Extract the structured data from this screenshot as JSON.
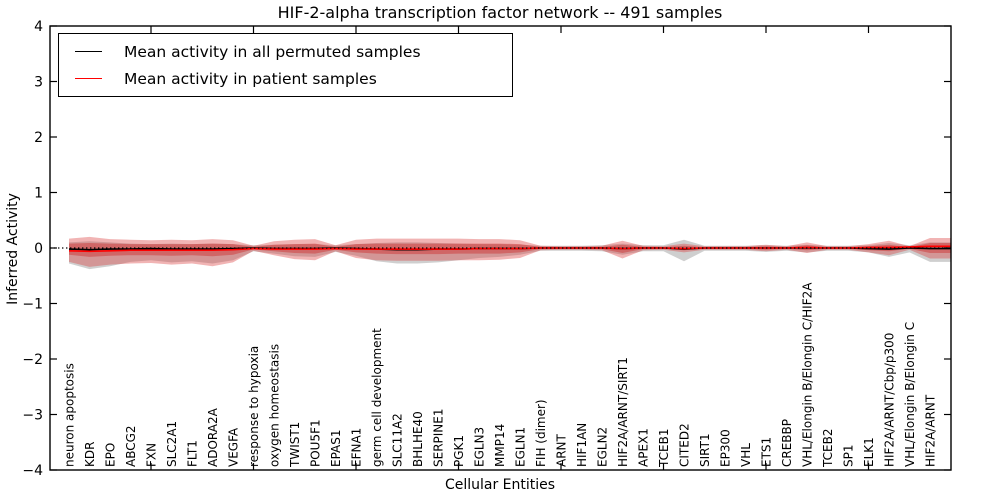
{
  "title": "HIF-2-alpha transcription factor network -- 491 samples",
  "xlabel": "Cellular Entities",
  "ylabel": "Inferred Activity",
  "legend": {
    "position": "upper left",
    "items": [
      {
        "label": "Mean activity in all permuted samples",
        "color": "#000000"
      },
      {
        "label": "Mean activity in patient samples",
        "color": "#ff0000"
      }
    ]
  },
  "axes": {
    "yticks": [
      4,
      3,
      2,
      1,
      0,
      -1,
      -2,
      -3,
      -4
    ],
    "ylim": [
      -4,
      4
    ],
    "xtick_label_rotation": 90,
    "xticks_major_every": 5,
    "spine_color": "#000000",
    "background": "#ffffff"
  },
  "chart_data": {
    "type": "area",
    "title": "HIF-2-alpha transcription factor network -- 491 samples",
    "xlabel": "Cellular Entities",
    "ylabel": "Inferred Activity",
    "ylim": [
      -4,
      4
    ],
    "grid": false,
    "legend_position": "upper left",
    "sample_count": 491,
    "categories": [
      "neuron apoptosis",
      "KDR",
      "EPO",
      "ABCG2",
      "FXN",
      "SLC2A1",
      "FLT1",
      "ADORA2A",
      "VEGFA",
      "response to hypoxia",
      "oxygen homeostasis",
      "TWIST1",
      "POU5F1",
      "EPAS1",
      "EFNA1",
      "germ cell development",
      "SLC11A2",
      "BHLHE40",
      "SERPINE1",
      "PGK1",
      "EGLN3",
      "MMP14",
      "EGLN1",
      "FIH (dimer)",
      "ARNT",
      "HIF1AN",
      "EGLN2",
      "HIF2A/ARNT/SIRT1",
      "APEX1",
      "TCEB1",
      "CITED2",
      "SIRT1",
      "EP300",
      "VHL",
      "ETS1",
      "CREBBP",
      "VHL/Elongin B/Elongin C/HIF2A",
      "TCEB2",
      "SP1",
      "ELK1",
      "HIF2A/ARNT/Cbp/p300",
      "VHL/Elongin B/Elongin C",
      "HIF2A/ARNT"
    ],
    "series": [
      {
        "name": "Permuted samples confidence band",
        "kind": "band",
        "fill": "rgba(130,130,130,0.38)",
        "upper": [
          0.1,
          0.12,
          0.1,
          0.08,
          0.07,
          0.08,
          0.07,
          0.08,
          0.07,
          0.05,
          0.06,
          0.07,
          0.07,
          0.05,
          0.07,
          0.09,
          0.1,
          0.1,
          0.09,
          0.08,
          0.07,
          0.07,
          0.06,
          0.04,
          0.04,
          0.04,
          0.05,
          0.08,
          0.05,
          0.05,
          0.15,
          0.04,
          0.04,
          0.04,
          0.05,
          0.04,
          0.06,
          0.04,
          0.04,
          0.05,
          0.09,
          0.05,
          0.1
        ],
        "lower": [
          -0.28,
          -0.38,
          -0.33,
          -0.25,
          -0.22,
          -0.26,
          -0.24,
          -0.28,
          -0.22,
          -0.06,
          -0.1,
          -0.15,
          -0.16,
          -0.07,
          -0.14,
          -0.24,
          -0.28,
          -0.28,
          -0.26,
          -0.22,
          -0.18,
          -0.16,
          -0.12,
          -0.05,
          -0.05,
          -0.05,
          -0.06,
          -0.12,
          -0.06,
          -0.06,
          -0.24,
          -0.05,
          -0.05,
          -0.05,
          -0.07,
          -0.05,
          -0.08,
          -0.05,
          -0.05,
          -0.08,
          -0.16,
          -0.08,
          -0.25
        ]
      },
      {
        "name": "Patient samples confidence band (outer)",
        "kind": "band",
        "fill": "rgba(219,58,58,0.38)",
        "upper": [
          0.17,
          0.2,
          0.16,
          0.15,
          0.14,
          0.15,
          0.14,
          0.16,
          0.14,
          0.04,
          0.12,
          0.15,
          0.16,
          0.05,
          0.15,
          0.17,
          0.17,
          0.17,
          0.17,
          0.17,
          0.16,
          0.16,
          0.14,
          0.04,
          0.03,
          0.03,
          0.04,
          0.13,
          0.04,
          0.03,
          0.08,
          0.03,
          0.03,
          0.03,
          0.06,
          0.03,
          0.1,
          0.03,
          0.03,
          0.07,
          0.13,
          0.03,
          0.18
        ],
        "lower": [
          -0.25,
          -0.34,
          -0.3,
          -0.28,
          -0.27,
          -0.3,
          -0.28,
          -0.33,
          -0.26,
          -0.05,
          -0.13,
          -0.2,
          -0.22,
          -0.06,
          -0.18,
          -0.22,
          -0.23,
          -0.23,
          -0.23,
          -0.22,
          -0.22,
          -0.21,
          -0.18,
          -0.04,
          -0.03,
          -0.03,
          -0.04,
          -0.19,
          -0.04,
          -0.03,
          -0.08,
          -0.03,
          -0.03,
          -0.03,
          -0.06,
          -0.03,
          -0.09,
          -0.03,
          -0.03,
          -0.08,
          -0.13,
          -0.03,
          -0.19
        ]
      },
      {
        "name": "Patient samples confidence band (inner)",
        "kind": "band",
        "fill": "rgba(205,35,35,0.42)",
        "upper": [
          0.08,
          0.09,
          0.08,
          0.07,
          0.07,
          0.07,
          0.07,
          0.08,
          0.07,
          0.02,
          0.06,
          0.07,
          0.08,
          0.02,
          0.07,
          0.08,
          0.08,
          0.08,
          0.08,
          0.08,
          0.08,
          0.08,
          0.07,
          0.02,
          0.015,
          0.015,
          0.02,
          0.06,
          0.02,
          0.015,
          0.04,
          0.015,
          0.015,
          0.015,
          0.03,
          0.015,
          0.05,
          0.015,
          0.015,
          0.03,
          0.06,
          0.015,
          0.09
        ],
        "lower": [
          -0.12,
          -0.16,
          -0.14,
          -0.13,
          -0.13,
          -0.14,
          -0.13,
          -0.15,
          -0.12,
          -0.025,
          -0.06,
          -0.09,
          -0.1,
          -0.03,
          -0.08,
          -0.1,
          -0.11,
          -0.11,
          -0.11,
          -0.1,
          -0.1,
          -0.1,
          -0.08,
          -0.02,
          -0.015,
          -0.015,
          -0.02,
          -0.09,
          -0.02,
          -0.015,
          -0.04,
          -0.015,
          -0.015,
          -0.015,
          -0.03,
          -0.015,
          -0.04,
          -0.015,
          -0.015,
          -0.04,
          -0.06,
          -0.015,
          -0.09
        ]
      },
      {
        "name": "Mean activity in all permuted samples",
        "kind": "line",
        "color": "#000000",
        "values": [
          -0.02,
          -0.03,
          -0.02,
          -0.02,
          -0.01,
          -0.02,
          -0.02,
          -0.02,
          -0.01,
          0,
          -0.01,
          -0.01,
          -0.01,
          0,
          -0.01,
          -0.02,
          -0.03,
          -0.03,
          -0.02,
          -0.02,
          -0.01,
          -0.01,
          -0.01,
          0,
          0,
          0,
          0,
          -0.01,
          0,
          0,
          -0.02,
          0,
          0,
          0,
          0,
          0,
          0,
          0,
          0,
          -0.01,
          -0.02,
          0,
          -0.01
        ]
      },
      {
        "name": "Mean activity in patient samples",
        "kind": "line",
        "color": "#ff0000",
        "values": [
          -0.05,
          -0.06,
          -0.05,
          -0.04,
          -0.04,
          -0.04,
          -0.04,
          -0.04,
          -0.03,
          -0.01,
          -0.02,
          -0.02,
          -0.02,
          -0.01,
          -0.02,
          -0.02,
          -0.02,
          -0.02,
          -0.02,
          -0.02,
          -0.01,
          -0.01,
          -0.01,
          0,
          0,
          0,
          0,
          -0.01,
          0,
          0,
          -0.01,
          0,
          0,
          0,
          0,
          0,
          0.01,
          0,
          0,
          0.01,
          0.01,
          0.02,
          0.03
        ]
      }
    ],
    "zero_line": {
      "y": 0,
      "style": "dotted",
      "color": "#000000"
    }
  }
}
